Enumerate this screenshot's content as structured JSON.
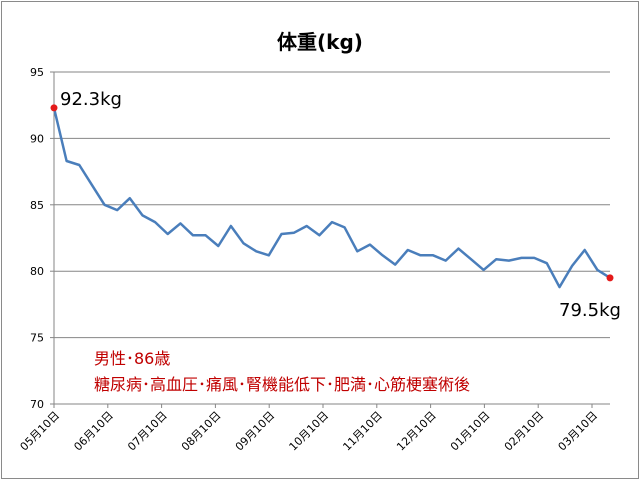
{
  "chart_data": {
    "type": "line",
    "title": "体重(kg)",
    "xlabel": "",
    "ylabel": "",
    "ylim": [
      70,
      95
    ],
    "yticks": [
      70,
      75,
      80,
      85,
      90,
      95
    ],
    "grid": "horizontal",
    "legend": "none",
    "line_color": "#4a7ebb",
    "marker_color": "#e41a1a",
    "note_color": "#c00000",
    "x_tick_labels": [
      "05月10日",
      "06月10日",
      "07月10日",
      "08月10日",
      "09月10日",
      "10月10日",
      "11月10日",
      "12月10日",
      "01月10日",
      "02月10日",
      "03月10日"
    ],
    "series": [
      {
        "values": [
          92.3,
          88.3,
          88.0,
          86.5,
          85.0,
          84.6,
          85.5,
          84.2,
          83.7,
          82.8,
          83.6,
          82.7,
          82.7,
          81.9,
          83.4,
          82.1,
          81.5,
          81.2,
          82.8,
          82.9,
          83.4,
          82.7,
          83.7,
          83.3,
          81.5,
          82.0,
          81.2,
          80.5,
          81.6,
          81.2,
          81.2,
          80.8,
          81.7,
          80.9,
          80.1,
          80.9,
          80.8,
          81.0,
          81.0,
          80.6,
          78.8,
          80.4,
          81.6,
          80.1,
          79.5
        ]
      }
    ],
    "annotations": {
      "start_label": "92.3kg",
      "end_label": "79.5kg",
      "note_line1": "男性･86歳",
      "note_line2": "糖尿病･高血圧･痛風･腎機能低下･肥満･心筋梗塞術後"
    }
  }
}
